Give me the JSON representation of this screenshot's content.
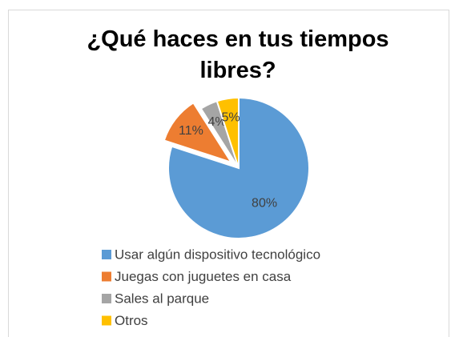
{
  "chart_data": {
    "type": "pie",
    "title": "¿Qué haces en tus tiempos libres?",
    "categories": [
      "Usar algún dispositivo tecnológico",
      "Juegas con juguetes en casa",
      "Sales al parque",
      "Otros"
    ],
    "values": [
      80,
      11,
      4,
      5
    ],
    "value_labels": [
      "80%",
      "11%",
      "4%",
      "5%"
    ],
    "colors": [
      "#5b9bd5",
      "#ed7d31",
      "#a5a5a5",
      "#ffc000"
    ],
    "legend": "bottom"
  }
}
